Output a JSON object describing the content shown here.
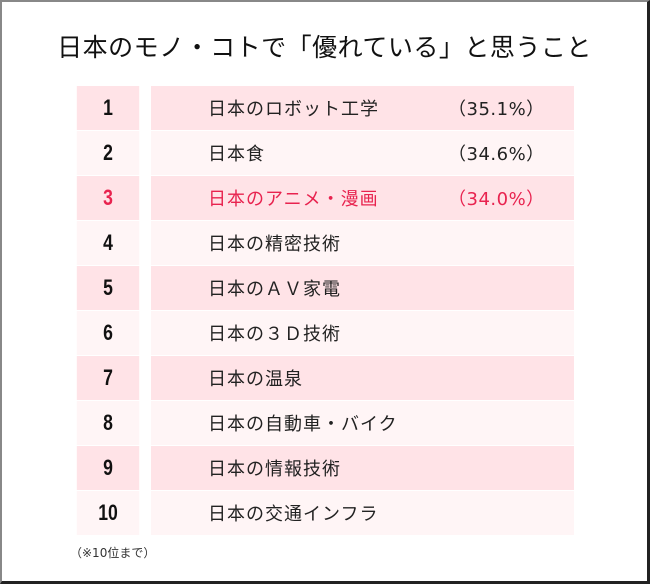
{
  "title": "日本のモノ・コトで「優れている」と思うこと",
  "rows": [
    {
      "rank": "1",
      "label": "日本のロボット工学",
      "pct": "（35.1%）"
    },
    {
      "rank": "2",
      "label": "日本食",
      "pct": "（34.6%）"
    },
    {
      "rank": "3",
      "label": "日本のアニメ・漫画",
      "pct": "（34.0%）"
    },
    {
      "rank": "4",
      "label": "日本の精密技術",
      "pct": ""
    },
    {
      "rank": "5",
      "label": "日本のＡＶ家電",
      "pct": ""
    },
    {
      "rank": "6",
      "label": "日本の３Ｄ技術",
      "pct": ""
    },
    {
      "rank": "7",
      "label": "日本の温泉",
      "pct": ""
    },
    {
      "rank": "8",
      "label": "日本の自動車・バイク",
      "pct": ""
    },
    {
      "rank": "9",
      "label": "日本の情報技術",
      "pct": ""
    },
    {
      "rank": "10",
      "label": "日本の交通インフラ",
      "pct": ""
    }
  ],
  "note": "（※10位まで）",
  "colors": {
    "row_dark": "#ffe3e7",
    "row_light": "#fff5f6",
    "highlight": "#e8234f"
  },
  "chart_data": {
    "type": "table",
    "title": "日本のモノ・コトで「優れている」と思うこと",
    "columns": [
      "rank",
      "item",
      "percent"
    ],
    "categories": [
      "日本のロボット工学",
      "日本食",
      "日本のアニメ・漫画",
      "日本の精密技術",
      "日本のＡＶ家電",
      "日本の３Ｄ技術",
      "日本の温泉",
      "日本の自動車・バイク",
      "日本の情報技術",
      "日本の交通インフラ"
    ],
    "ranks": [
      1,
      2,
      3,
      4,
      5,
      6,
      7,
      8,
      9,
      10
    ],
    "values": [
      35.1,
      34.6,
      34.0,
      null,
      null,
      null,
      null,
      null,
      null,
      null
    ],
    "unit": "%",
    "highlighted_rank": 3,
    "footnote": "（※10位まで）"
  }
}
